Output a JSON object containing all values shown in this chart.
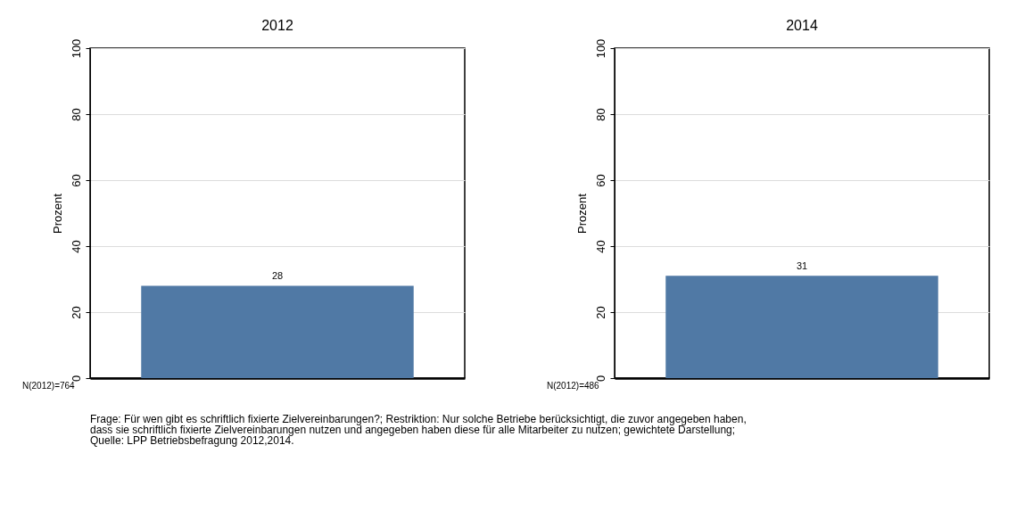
{
  "chart_data": [
    {
      "type": "bar",
      "title": "2012",
      "categories": [
        null
      ],
      "values": [
        28
      ],
      "color": "#5079a5",
      "ylim": [
        0,
        100
      ],
      "yticks": [
        0,
        20,
        40,
        60,
        80,
        100
      ],
      "ylabel": "Prozent",
      "grid": "y",
      "data_labels": true,
      "annotations": [
        "N(2012)=764"
      ]
    },
    {
      "type": "bar",
      "title": "2014",
      "categories": [
        null
      ],
      "values": [
        31
      ],
      "color": "#5079a5",
      "ylim": [
        0,
        100
      ],
      "yticks": [
        0,
        20,
        40,
        60,
        80,
        100
      ],
      "ylabel": "Prozent",
      "grid": "y",
      "data_labels": true,
      "annotations": [
        "N(2012)=486",
        "Frage: Für wen gibt es schriftlich fixierte Zielvereinbarungen?; Restriktion: Nur solche Betriebe berücksichtigt, die zuvor angegeben haben,\ndass sie schriftlich fixierte Zielvereinbarungen nutzen und angegeben haben diese für alle Mitarbeiter zu nutzen; gewichtete Darstellung;\nQuelle: LPP Betriebsbefragung 2012,2014."
      ]
    }
  ]
}
